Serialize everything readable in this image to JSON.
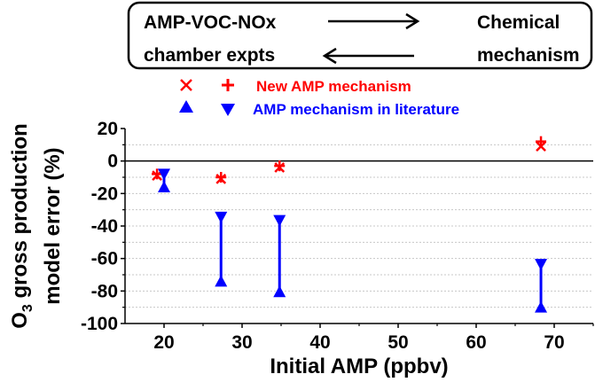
{
  "diagram": {
    "left_line1": "AMP-VOC-NOx",
    "left_line2": "chamber expts",
    "right_line1": "Chemical",
    "right_line2": "mechanism",
    "arrow_top": "right-arrow-icon",
    "arrow_bottom": "left-arrow-icon"
  },
  "legend": [
    {
      "label": "New AMP mechanism",
      "color": "#ff0000",
      "markers": [
        "x-marker-icon",
        "plus-marker-icon"
      ]
    },
    {
      "label": "AMP mechanism in literature",
      "color": "#0000ff",
      "markers": [
        "triangle-up-icon",
        "triangle-down-icon"
      ]
    }
  ],
  "chart_data": {
    "type": "scatter",
    "title": "",
    "xlabel": "Initial AMP (ppbv)",
    "ylabel_line1": "O3 gross production",
    "ylabel_line1_main": "O",
    "ylabel_line1_sub": "3",
    "ylabel_line1_rest": " gross production",
    "ylabel_line2": "model error (%)",
    "xlim": [
      15,
      75
    ],
    "ylim": [
      -100,
      20
    ],
    "xticks": [
      20,
      30,
      40,
      50,
      60,
      70
    ],
    "xtick_labels": [
      "20",
      "30",
      "40",
      "50",
      "60",
      "70"
    ],
    "xminor": [
      25,
      35,
      45,
      55,
      65,
      75
    ],
    "yticks": [
      20,
      0,
      -20,
      -40,
      -60,
      -80,
      -100
    ],
    "ytick_labels": [
      "20",
      "0",
      "-20",
      "-40",
      "-60",
      "-80",
      "-100"
    ],
    "yminor": [
      10,
      -10,
      -30,
      -50,
      -70,
      -90
    ],
    "grid": "dotted horizontal every 10",
    "zero_line": true,
    "series": [
      {
        "name": "New AMP mechanism (x)",
        "marker": "x",
        "color": "#ff0000",
        "points": [
          [
            19.1,
            -9
          ],
          [
            27.3,
            -11
          ],
          [
            34.8,
            -4
          ],
          [
            68.3,
            9
          ]
        ]
      },
      {
        "name": "New AMP mechanism (+)",
        "marker": "+",
        "color": "#ff0000",
        "points": [
          [
            19.1,
            -8
          ],
          [
            27.3,
            -10
          ],
          [
            34.8,
            -3
          ],
          [
            68.3,
            12
          ]
        ]
      },
      {
        "name": "AMP mechanism in literature (up)",
        "marker": "triangle-up",
        "color": "#0000ff",
        "points": [
          [
            20.0,
            -16
          ],
          [
            27.3,
            -74
          ],
          [
            34.8,
            -80.5
          ],
          [
            68.3,
            -90
          ]
        ]
      },
      {
        "name": "AMP mechanism in literature (down)",
        "marker": "triangle-down",
        "color": "#0000ff",
        "points": [
          [
            20.0,
            -8
          ],
          [
            27.3,
            -34.5
          ],
          [
            34.8,
            -36.5
          ],
          [
            68.3,
            -63.5
          ]
        ]
      }
    ]
  }
}
